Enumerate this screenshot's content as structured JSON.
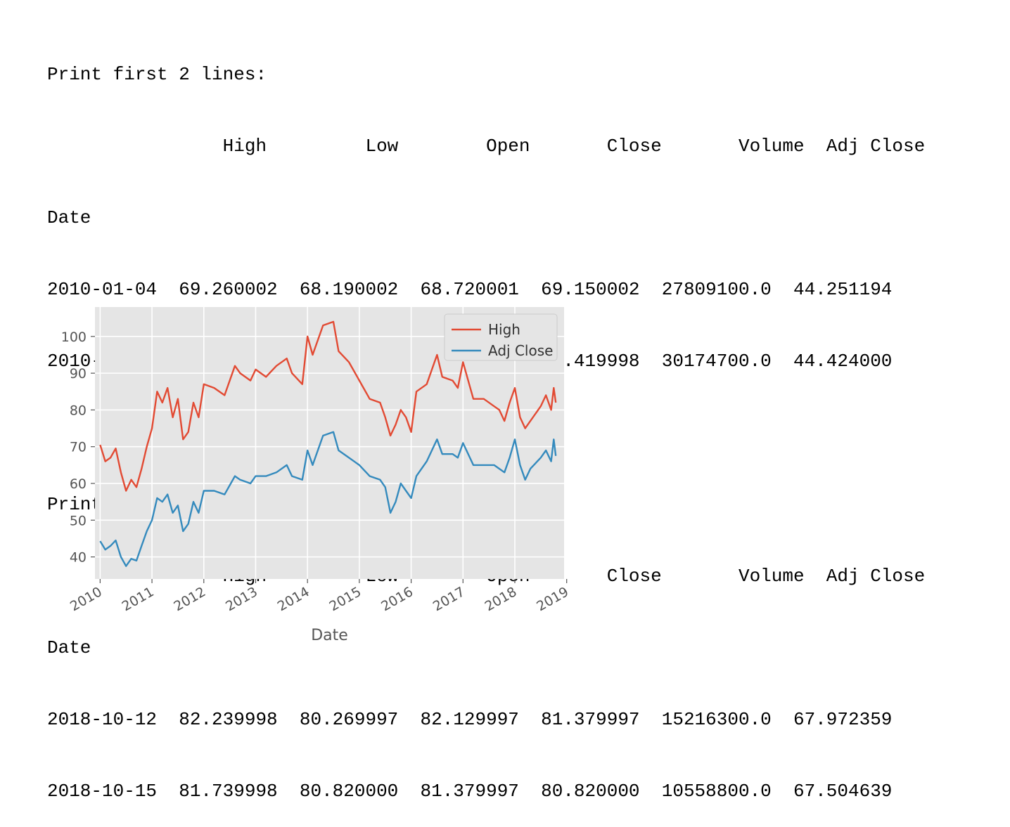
{
  "output": {
    "section1": {
      "title": "Print first 2 lines:",
      "header": "                High         Low        Open       Close       Volume  Adj Close",
      "index_name": "Date",
      "rows": [
        "2010-01-04  69.260002  68.190002  68.720001  69.150002  27809100.0  44.251194",
        "2010-01-05  69.449997  68.800003  69.190002  69.419998  30174700.0  44.424000"
      ]
    },
    "section2": {
      "title": "Print last 2 lines:",
      "header": "                High         Low        Open       Close       Volume  Adj Close",
      "index_name": "Date",
      "rows": [
        "2018-10-12  82.239998  80.269997  82.129997  81.379997  15216300.0  67.972359",
        "2018-10-15  81.739998  80.820000  81.379997  80.820000  10558800.0  67.504639"
      ]
    }
  },
  "chart_data": {
    "type": "line",
    "title": "",
    "xlabel": "Date",
    "ylabel": "",
    "xlim": [
      2009.9,
      2018.95
    ],
    "ylim": [
      34,
      108
    ],
    "xticks": [
      "2010",
      "2011",
      "2012",
      "2013",
      "2014",
      "2015",
      "2016",
      "2017",
      "2018",
      "2019"
    ],
    "yticks": [
      40,
      50,
      60,
      70,
      80,
      90,
      100
    ],
    "grid": true,
    "legend_position": "top-right",
    "colors": {
      "High": "#e24a33",
      "Adj Close": "#348abd",
      "background": "#e5e5e5",
      "grid": "#ffffff"
    },
    "series": [
      {
        "name": "High",
        "x": [
          2010.0,
          2010.1,
          2010.2,
          2010.3,
          2010.4,
          2010.5,
          2010.6,
          2010.7,
          2010.8,
          2010.9,
          2011.0,
          2011.1,
          2011.2,
          2011.3,
          2011.4,
          2011.5,
          2011.6,
          2011.7,
          2011.8,
          2011.9,
          2012.0,
          2012.2,
          2012.4,
          2012.6,
          2012.7,
          2012.9,
          2013.0,
          2013.2,
          2013.4,
          2013.6,
          2013.7,
          2013.9,
          2014.0,
          2014.1,
          2014.3,
          2014.5,
          2014.6,
          2014.8,
          2015.0,
          2015.2,
          2015.4,
          2015.5,
          2015.6,
          2015.7,
          2015.8,
          2015.9,
          2016.0,
          2016.1,
          2016.3,
          2016.5,
          2016.6,
          2016.8,
          2016.9,
          2017.0,
          2017.2,
          2017.4,
          2017.6,
          2017.7,
          2017.8,
          2017.9,
          2018.0,
          2018.1,
          2018.2,
          2018.3,
          2018.5,
          2018.6,
          2018.7,
          2018.75,
          2018.79
        ],
        "values": [
          70.5,
          66,
          67,
          69.5,
          63,
          58,
          61,
          59,
          64,
          70,
          75,
          85,
          82,
          86,
          78,
          83,
          72,
          74,
          82,
          78,
          87,
          86,
          84,
          92,
          90,
          88,
          91,
          89,
          92,
          94,
          90,
          87,
          100,
          95,
          103,
          104,
          96,
          93,
          88,
          83,
          82,
          78,
          73,
          76,
          80,
          78,
          74,
          85,
          87,
          95,
          89,
          88,
          86,
          93,
          83,
          83,
          81,
          80,
          77,
          82,
          86,
          78,
          75,
          77,
          81,
          84,
          80,
          86,
          82
        ]
      },
      {
        "name": "Adj Close",
        "x": [
          2010.0,
          2010.1,
          2010.2,
          2010.3,
          2010.4,
          2010.5,
          2010.6,
          2010.7,
          2010.8,
          2010.9,
          2011.0,
          2011.1,
          2011.2,
          2011.3,
          2011.4,
          2011.5,
          2011.6,
          2011.7,
          2011.8,
          2011.9,
          2012.0,
          2012.2,
          2012.4,
          2012.6,
          2012.7,
          2012.9,
          2013.0,
          2013.2,
          2013.4,
          2013.6,
          2013.7,
          2013.9,
          2014.0,
          2014.1,
          2014.3,
          2014.5,
          2014.6,
          2014.8,
          2015.0,
          2015.2,
          2015.4,
          2015.5,
          2015.6,
          2015.7,
          2015.8,
          2015.9,
          2016.0,
          2016.1,
          2016.3,
          2016.5,
          2016.6,
          2016.8,
          2016.9,
          2017.0,
          2017.2,
          2017.4,
          2017.6,
          2017.7,
          2017.8,
          2017.9,
          2018.0,
          2018.1,
          2018.2,
          2018.3,
          2018.5,
          2018.6,
          2018.7,
          2018.75,
          2018.79
        ],
        "values": [
          44.3,
          42,
          43,
          44.5,
          40,
          37.5,
          39.5,
          39,
          43,
          47,
          50,
          56,
          55,
          57,
          52,
          54,
          47,
          49,
          55,
          52,
          58,
          58,
          57,
          62,
          61,
          60,
          62,
          62,
          63,
          65,
          62,
          61,
          69,
          65,
          73,
          74,
          69,
          67,
          65,
          62,
          61,
          59,
          52,
          55,
          60,
          58,
          56,
          62,
          66,
          72,
          68,
          68,
          67,
          71,
          65,
          65,
          65,
          64,
          63,
          67,
          72,
          65,
          61,
          64,
          67,
          69,
          66,
          72,
          67.5
        ]
      }
    ]
  }
}
